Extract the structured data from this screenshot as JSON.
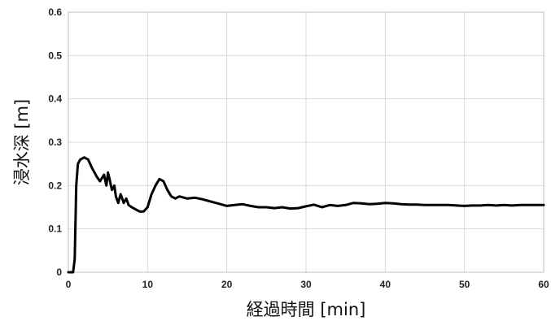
{
  "chart_data": {
    "type": "line",
    "xlabel": "経過時間 [min]",
    "ylabel": "浸水深 [m]",
    "xlim": [
      0,
      60
    ],
    "ylim": [
      0,
      0.6
    ],
    "x_ticks": [
      0,
      10,
      20,
      30,
      40,
      50,
      60
    ],
    "y_ticks": [
      0,
      0.1,
      0.2,
      0.3,
      0.4,
      0.5,
      0.6
    ],
    "x_tick_labels": [
      "0",
      "10",
      "20",
      "30",
      "40",
      "50",
      "60"
    ],
    "y_tick_labels": [
      "0",
      "0.1",
      "0.2",
      "0.3",
      "0.4",
      "0.5",
      "0.6"
    ],
    "grid": true,
    "legend": "none",
    "series": [
      {
        "color": "#000000",
        "x": [
          0,
          0.6,
          0.8,
          1.0,
          1.2,
          1.5,
          2.0,
          2.5,
          3.0,
          3.3,
          3.6,
          4.0,
          4.5,
          4.8,
          5.0,
          5.2,
          5.5,
          5.8,
          6.0,
          6.3,
          6.6,
          7.0,
          7.3,
          7.6,
          8.0,
          8.5,
          9.0,
          9.5,
          10.0,
          10.5,
          11.0,
          11.5,
          12.0,
          12.5,
          13.0,
          13.5,
          14.0,
          15.0,
          16.0,
          17.0,
          18.0,
          19.0,
          20.0,
          21.0,
          22.0,
          23.0,
          24.0,
          25.0,
          26.0,
          27.0,
          28.0,
          29.0,
          30.0,
          31.0,
          32.0,
          33.0,
          34.0,
          35.0,
          36.0,
          37.0,
          38.0,
          39.0,
          40.0,
          41.0,
          42.0,
          43.0,
          44.0,
          45.0,
          46.0,
          47.0,
          48.0,
          49.0,
          50.0,
          51.0,
          52.0,
          53.0,
          54.0,
          55.0,
          56.0,
          57.0,
          58.0,
          59.0,
          60.0
        ],
        "y": [
          0,
          0,
          0.03,
          0.2,
          0.25,
          0.26,
          0.265,
          0.26,
          0.24,
          0.23,
          0.22,
          0.21,
          0.225,
          0.2,
          0.23,
          0.215,
          0.19,
          0.2,
          0.175,
          0.16,
          0.18,
          0.16,
          0.17,
          0.155,
          0.15,
          0.145,
          0.14,
          0.14,
          0.15,
          0.18,
          0.2,
          0.215,
          0.21,
          0.19,
          0.175,
          0.17,
          0.175,
          0.17,
          0.172,
          0.168,
          0.163,
          0.158,
          0.153,
          0.155,
          0.157,
          0.153,
          0.15,
          0.15,
          0.148,
          0.15,
          0.147,
          0.148,
          0.152,
          0.156,
          0.15,
          0.155,
          0.153,
          0.155,
          0.16,
          0.159,
          0.157,
          0.158,
          0.16,
          0.159,
          0.157,
          0.156,
          0.156,
          0.155,
          0.155,
          0.155,
          0.155,
          0.154,
          0.153,
          0.154,
          0.154,
          0.155,
          0.154,
          0.155,
          0.154,
          0.155,
          0.155,
          0.155,
          0.155
        ]
      }
    ]
  }
}
